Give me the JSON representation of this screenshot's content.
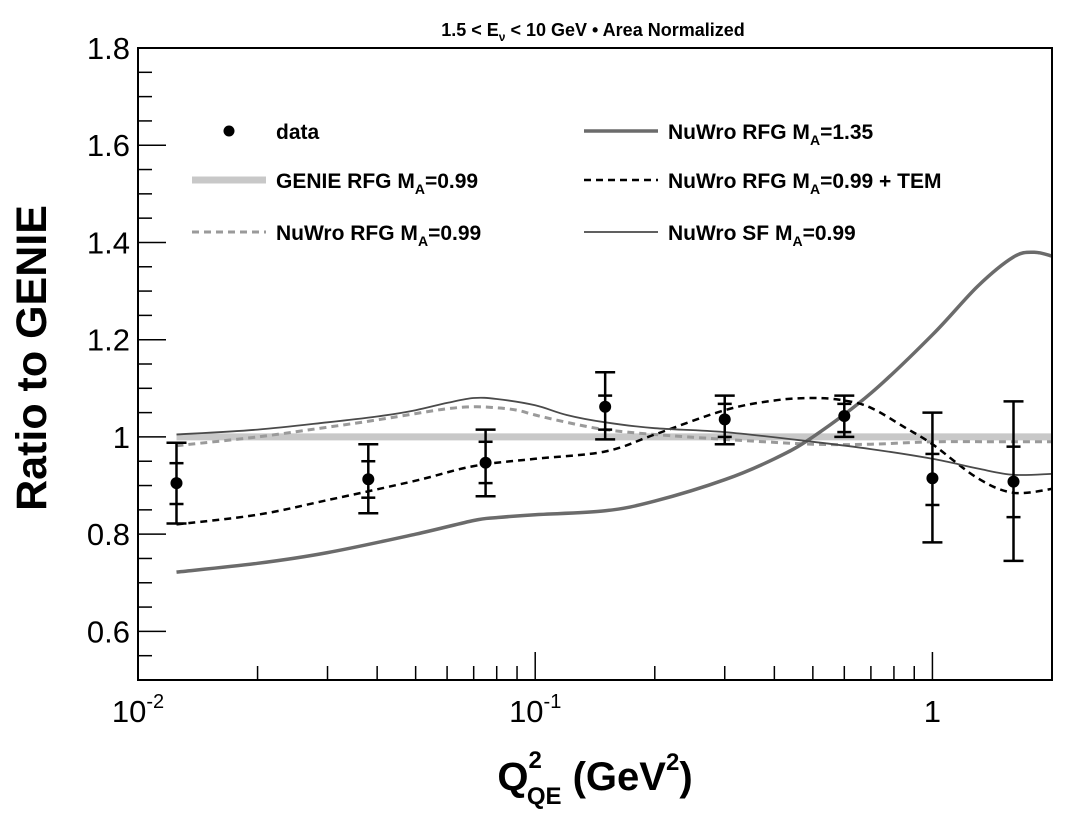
{
  "chart_data": {
    "type": "line",
    "title": "1.5 < E",
    "title_sub": "ν",
    "title_rest": " < 10 GeV • Area Normalized",
    "xlabel_main": "Q",
    "xlabel_sup": "2",
    "xlabel_sub": "QE",
    "xlabel_rest": " (GeV",
    "xlabel_rest_sup": "2",
    "xlabel_close": ")",
    "ylabel": "Ratio to GENIE",
    "xscale": "log",
    "xlim": [
      0.01,
      2.0
    ],
    "ylim": [
      0.5,
      1.8
    ],
    "grid": false,
    "legend_placement": "top",
    "x_tick_labels": [
      {
        "x": 0.01,
        "base": "10",
        "exp": "-2"
      },
      {
        "x": 0.1,
        "base": "10",
        "exp": "-1"
      },
      {
        "x": 1,
        "base": "1",
        "exp": ""
      }
    ],
    "y_ticks": [
      0.6,
      0.8,
      1.0,
      1.2,
      1.4,
      1.6,
      1.8
    ],
    "y_tick_labels": [
      "0.6",
      "0.8",
      "1",
      "1.2",
      "1.4",
      "1.6",
      "1.8"
    ],
    "data_points": {
      "name": "data",
      "points": [
        {
          "x": 0.0125,
          "y": 0.905,
          "inner": [
            0.862,
            0.946
          ],
          "outer": [
            0.822,
            0.988
          ]
        },
        {
          "x": 0.038,
          "y": 0.913,
          "inner": [
            0.875,
            0.95
          ],
          "outer": [
            0.843,
            0.985
          ]
        },
        {
          "x": 0.075,
          "y": 0.947,
          "inner": [
            0.905,
            0.99
          ],
          "outer": [
            0.878,
            1.015
          ]
        },
        {
          "x": 0.15,
          "y": 1.062,
          "inner": [
            1.015,
            1.085
          ],
          "outer": [
            0.995,
            1.133
          ]
        },
        {
          "x": 0.3,
          "y": 1.036,
          "inner": [
            1.0,
            1.068
          ],
          "outer": [
            0.985,
            1.085
          ]
        },
        {
          "x": 0.6,
          "y": 1.043,
          "inner": [
            1.01,
            1.068
          ],
          "outer": [
            1.0,
            1.085
          ]
        },
        {
          "x": 1.0,
          "y": 0.915,
          "inner": [
            0.86,
            0.965
          ],
          "outer": [
            0.783,
            1.05
          ]
        },
        {
          "x": 1.6,
          "y": 0.908,
          "inner": [
            0.835,
            0.98
          ],
          "outer": [
            0.745,
            1.073
          ]
        }
      ]
    },
    "series": [
      {
        "name": "GENIE RFG M",
        "name_sub": "A",
        "name_rest": "=0.99",
        "style": "genie",
        "x": [
          0.0125,
          2.0
        ],
        "y": [
          1.0,
          1.0
        ]
      },
      {
        "name": "NuWro RFG M",
        "name_sub": "A",
        "name_rest": "=0.99",
        "style": "nuwro-rfg-dashed",
        "x": [
          0.0125,
          0.02,
          0.03,
          0.04,
          0.05,
          0.06,
          0.07,
          0.08,
          0.09,
          0.1,
          0.12,
          0.15,
          0.2,
          0.3,
          0.5,
          0.7,
          1.0,
          1.5,
          2.0
        ],
        "y": [
          0.982,
          1.0,
          1.02,
          1.035,
          1.048,
          1.058,
          1.062,
          1.06,
          1.055,
          1.045,
          1.03,
          1.015,
          1.005,
          0.995,
          0.985,
          0.985,
          0.99,
          0.99,
          0.99
        ]
      },
      {
        "name": "NuWro RFG M",
        "name_sub": "A",
        "name_rest": "=1.35",
        "style": "nuwro-135",
        "x": [
          0.0125,
          0.02,
          0.03,
          0.05,
          0.07,
          0.08,
          0.1,
          0.15,
          0.2,
          0.3,
          0.4,
          0.5,
          0.7,
          1.0,
          1.3,
          1.6,
          1.8,
          2.0
        ],
        "y": [
          0.722,
          0.74,
          0.762,
          0.8,
          0.828,
          0.834,
          0.84,
          0.848,
          0.868,
          0.912,
          0.955,
          1.0,
          1.09,
          1.21,
          1.31,
          1.37,
          1.38,
          1.372
        ]
      },
      {
        "name": "NuWro RFG M",
        "name_sub": "A",
        "name_rest": "=0.99 + TEM",
        "style": "nuwro-tem",
        "x": [
          0.0125,
          0.02,
          0.03,
          0.05,
          0.07,
          0.1,
          0.15,
          0.2,
          0.3,
          0.4,
          0.5,
          0.6,
          0.7,
          0.85,
          1.0,
          1.3,
          1.6,
          2.0
        ],
        "y": [
          0.82,
          0.84,
          0.87,
          0.91,
          0.94,
          0.955,
          0.97,
          1.005,
          1.055,
          1.075,
          1.08,
          1.075,
          1.06,
          1.02,
          0.985,
          0.915,
          0.885,
          0.893
        ]
      },
      {
        "name": "NuWro SF M",
        "name_sub": "A",
        "name_rest": "=0.99",
        "style": "nuwro-sf",
        "x": [
          0.0125,
          0.02,
          0.03,
          0.04,
          0.05,
          0.06,
          0.07,
          0.08,
          0.1,
          0.12,
          0.15,
          0.2,
          0.3,
          0.5,
          0.7,
          1.0,
          1.3,
          1.6,
          2.0
        ],
        "y": [
          1.005,
          1.015,
          1.03,
          1.042,
          1.055,
          1.07,
          1.08,
          1.078,
          1.065,
          1.045,
          1.03,
          1.018,
          1.01,
          0.99,
          0.975,
          0.955,
          0.935,
          0.922,
          0.924
        ]
      }
    ],
    "legend": {
      "left": [
        {
          "type": "marker",
          "label": "data",
          "label_sub": "",
          "label_rest": ""
        },
        {
          "type": "line",
          "style": "genie",
          "label": "GENIE RFG M",
          "label_sub": "A",
          "label_rest": "=0.99"
        },
        {
          "type": "line",
          "style": "nuwro-rfg-dashed",
          "label": "NuWro RFG M",
          "label_sub": "A",
          "label_rest": "=0.99"
        }
      ],
      "right": [
        {
          "type": "line",
          "style": "nuwro-135",
          "label": "NuWro RFG M",
          "label_sub": "A",
          "label_rest": "=1.35"
        },
        {
          "type": "line",
          "style": "nuwro-tem",
          "label": "NuWro RFG M",
          "label_sub": "A",
          "label_rest": "=0.99 + TEM"
        },
        {
          "type": "line",
          "style": "nuwro-sf",
          "label": "NuWro SF M",
          "label_sub": "A",
          "label_rest": "=0.99"
        }
      ]
    }
  }
}
